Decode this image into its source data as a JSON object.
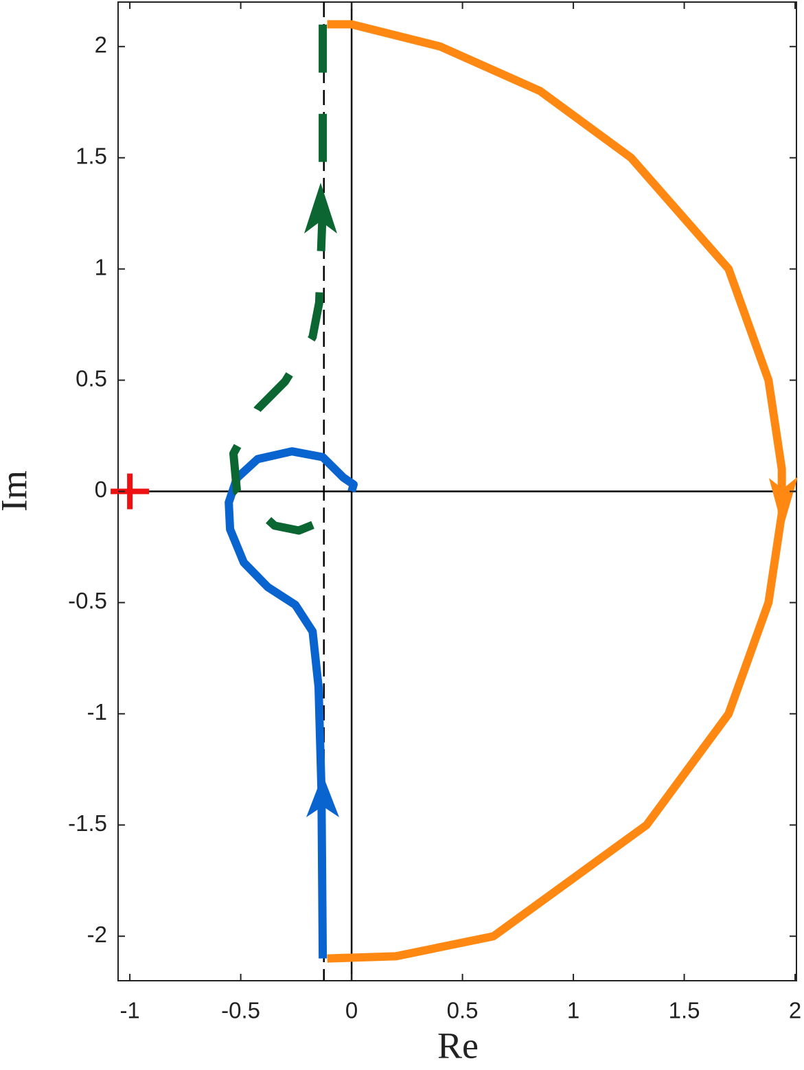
{
  "chart_data": {
    "type": "line",
    "xlabel": "Re",
    "ylabel": "Im",
    "xlim": [
      -1.053,
      2.006
    ],
    "ylim": [
      -2.2,
      2.2
    ],
    "xticks": [
      -1,
      -0.5,
      0,
      0.5,
      1,
      1.5,
      2
    ],
    "yticks": [
      -2,
      -1.5,
      -1,
      -0.5,
      0,
      0.5,
      1,
      1.5,
      2
    ],
    "grid": false,
    "reference_x": -0.125,
    "critical_point": {
      "x": -1,
      "y": 0,
      "color": "#ee1111"
    },
    "series": [
      {
        "color": "#0a64cf",
        "style": "solid",
        "x": [
          -0.13,
          -0.136,
          -0.149,
          -0.176,
          -0.254,
          -0.378,
          -0.486,
          -0.548,
          -0.554,
          -0.517,
          -0.424,
          -0.269,
          -0.13,
          -0.037,
          0.009,
          0
        ],
        "values": [
          -2.1,
          -1.34,
          -0.88,
          -0.63,
          -0.51,
          -0.43,
          -0.32,
          -0.17,
          -0.05,
          0.06,
          0.145,
          0.18,
          0.154,
          0.062,
          0.031,
          0
        ]
      },
      {
        "color": "#0b6632",
        "style": "dashed",
        "x": [
          -0.13,
          -0.13,
          -0.146,
          -0.176,
          -0.3,
          -0.424,
          -0.533,
          -0.517,
          -0.347,
          -0.238,
          -0.146
        ],
        "values": [
          2.099,
          1.281,
          0.849,
          0.694,
          0.494,
          0.37,
          0.17,
          0,
          -0.154,
          -0.176,
          -0.139
        ]
      },
      {
        "color": "#ff8812",
        "style": "solid",
        "x": [
          -0.11,
          0,
          0.4,
          0.85,
          1.26,
          1.7,
          1.88,
          1.94,
          1.94,
          1.88,
          1.7,
          1.33,
          0.64,
          0.2,
          -0.11
        ],
        "values": [
          2.1,
          2.1,
          2.0,
          1.8,
          1.5,
          1.0,
          0.5,
          0.1,
          -0.1,
          -0.5,
          -1.0,
          -1.5,
          -2.0,
          -2.09,
          -2.1
        ]
      }
    ]
  }
}
